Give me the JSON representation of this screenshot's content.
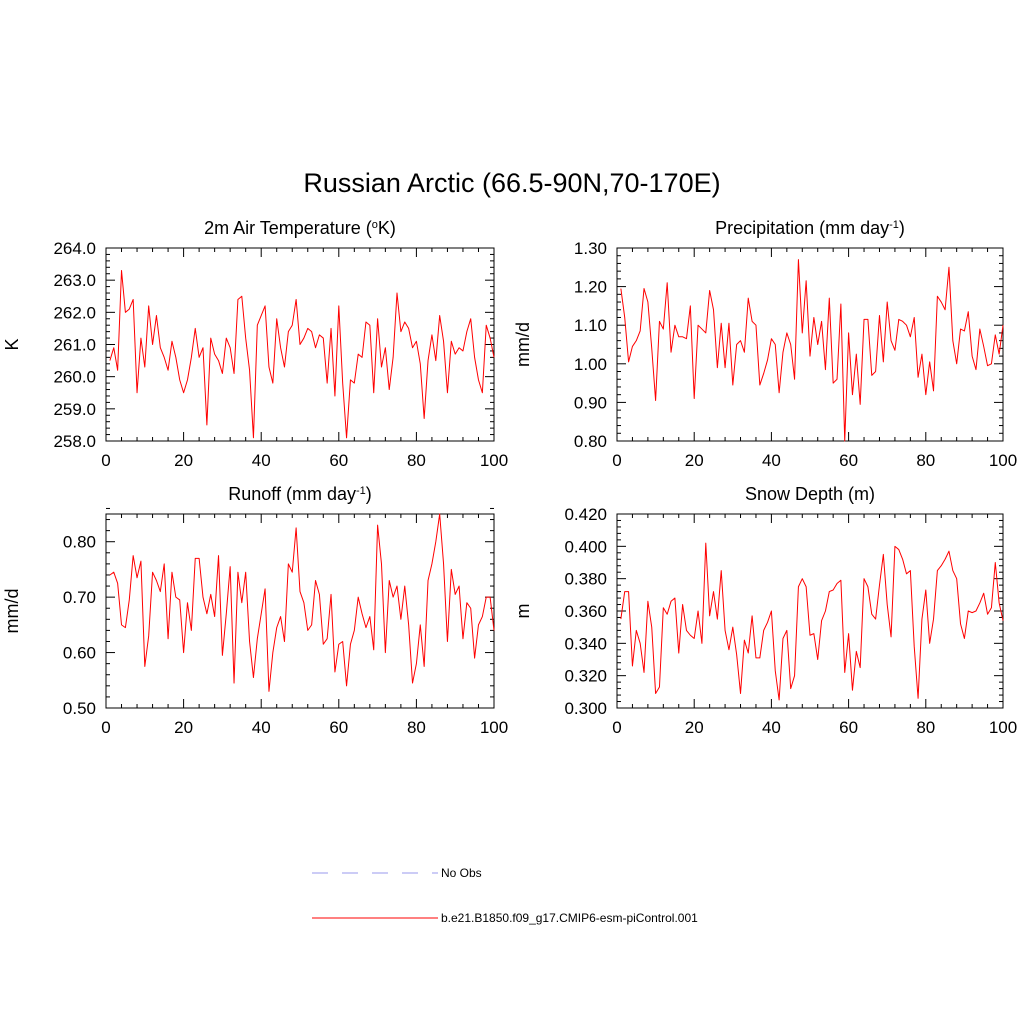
{
  "figure_title": "Russian Arctic (66.5-90N,70-170E)",
  "colors": {
    "model": "#ff0000",
    "obs": "#9999ee"
  },
  "legend": {
    "items": [
      {
        "label": "No Obs",
        "style": "dashed",
        "color": "#9999ee"
      },
      {
        "label": "b.e21.B1850.f09_g17.CMIP6-esm-piControl.001",
        "style": "solid",
        "color": "#ff0000"
      }
    ]
  },
  "chart_data": [
    {
      "id": "temp",
      "type": "line",
      "title": "2m Air Temperature",
      "title_sup": "o",
      "title_parts": [
        "2m Air Temperature (",
        "o",
        "K)"
      ],
      "ylabel": "K",
      "xlabel": "",
      "xlim": [
        0,
        100
      ],
      "ylim": [
        258.0,
        264.0
      ],
      "x_ticks": [
        0,
        20,
        40,
        60,
        80,
        100
      ],
      "x_tick_labels": [
        "0",
        "20",
        "40",
        "60",
        "80",
        "100"
      ],
      "y_ticks": [
        258,
        259,
        260,
        261,
        262,
        263,
        264
      ],
      "y_tick_labels": [
        "258.0",
        "259.0",
        "260.0",
        "261.0",
        "262.0",
        "263.0",
        "264.0"
      ],
      "x_start": 1,
      "series": [
        {
          "name": "b.e21.B1850.f09_g17.CMIP6-esm-piControl.001",
          "values": [
            260.5,
            260.9,
            260.2,
            263.3,
            262.0,
            262.1,
            262.4,
            259.5,
            261.2,
            260.3,
            262.2,
            261.0,
            261.9,
            260.9,
            260.6,
            260.2,
            261.1,
            260.6,
            259.9,
            259.5,
            259.9,
            260.6,
            261.5,
            260.6,
            260.9,
            258.5,
            261.2,
            260.7,
            260.5,
            260.1,
            261.2,
            260.9,
            260.1,
            262.4,
            262.5,
            261.2,
            260.2,
            258.1,
            261.6,
            261.9,
            262.2,
            260.3,
            259.8,
            261.8,
            260.9,
            260.3,
            261.4,
            261.6,
            262.4,
            261.0,
            261.2,
            261.5,
            261.4,
            260.9,
            261.3,
            261.2,
            259.8,
            261.5,
            259.4,
            262.2,
            259.8,
            258.1,
            259.9,
            259.8,
            260.7,
            260.6,
            261.7,
            261.6,
            259.5,
            261.8,
            260.3,
            260.9,
            259.6,
            260.6,
            262.6,
            261.4,
            261.7,
            261.5,
            260.9,
            261.1,
            260.4,
            258.7,
            260.5,
            261.3,
            260.5,
            261.9,
            261.1,
            259.5,
            261.1,
            260.7,
            260.9,
            260.8,
            261.4,
            261.8,
            260.6,
            259.9,
            259.5,
            261.6,
            261.2,
            260.6
          ]
        }
      ]
    },
    {
      "id": "precip",
      "type": "line",
      "title": "Precipitation",
      "title_parts": [
        "Precipitation (mm day",
        "-1",
        ")"
      ],
      "ylabel": "mm/d",
      "xlabel": "",
      "xlim": [
        0,
        100
      ],
      "ylim": [
        0.8,
        1.3
      ],
      "x_ticks": [
        0,
        20,
        40,
        60,
        80,
        100
      ],
      "x_tick_labels": [
        "0",
        "20",
        "40",
        "60",
        "80",
        "100"
      ],
      "y_ticks": [
        0.8,
        0.9,
        1.0,
        1.1,
        1.2,
        1.3
      ],
      "y_tick_labels": [
        "0.80",
        "0.90",
        "1.00",
        "1.10",
        "1.20",
        "1.30"
      ],
      "x_start": 1,
      "series": [
        {
          "name": "b.e21.B1850.f09_g17.CMIP6-esm-piControl.001",
          "values": [
            1.195,
            1.12,
            1.005,
            1.045,
            1.06,
            1.085,
            1.195,
            1.16,
            1.04,
            0.905,
            1.11,
            1.09,
            1.21,
            1.03,
            1.1,
            1.07,
            1.07,
            1.065,
            1.15,
            0.91,
            1.1,
            1.09,
            1.08,
            1.19,
            1.14,
            0.99,
            1.105,
            0.99,
            1.105,
            0.945,
            1.05,
            1.06,
            1.03,
            1.17,
            1.11,
            1.1,
            0.945,
            0.975,
            1.01,
            1.065,
            1.05,
            0.925,
            1.03,
            1.08,
            1.05,
            0.96,
            1.27,
            1.08,
            1.215,
            1.02,
            1.12,
            1.05,
            1.11,
            0.985,
            1.17,
            0.95,
            0.96,
            1.155,
            0.8,
            1.08,
            0.92,
            1.025,
            0.895,
            1.115,
            1.115,
            0.97,
            0.98,
            1.125,
            1.005,
            1.16,
            1.06,
            1.035,
            1.115,
            1.11,
            1.1,
            1.07,
            1.12,
            0.965,
            1.025,
            0.92,
            1.005,
            0.93,
            1.175,
            1.16,
            1.14,
            1.25,
            1.06,
            1.0,
            1.09,
            1.085,
            1.135,
            1.02,
            0.985,
            1.09,
            1.045,
            0.995,
            1.0,
            1.075,
            1.025,
            1.1
          ]
        }
      ]
    },
    {
      "id": "runoff",
      "type": "line",
      "title": "Runoff",
      "title_parts": [
        "Runoff (mm day",
        "-1",
        ")"
      ],
      "ylabel": "mm/d",
      "xlabel": "",
      "xlim": [
        0,
        100
      ],
      "ylim": [
        0.5,
        0.85
      ],
      "x_ticks": [
        0,
        20,
        40,
        60,
        80,
        100
      ],
      "x_tick_labels": [
        "0",
        "20",
        "40",
        "60",
        "80",
        "100"
      ],
      "y_ticks": [
        0.5,
        0.6,
        0.7,
        0.8
      ],
      "y_tick_labels": [
        "0.50",
        "0.60",
        "0.70",
        "0.80"
      ],
      "x_start": 1,
      "series": [
        {
          "name": "b.e21.B1850.f09_g17.CMIP6-esm-piControl.001",
          "values": [
            0.74,
            0.745,
            0.725,
            0.65,
            0.645,
            0.695,
            0.775,
            0.735,
            0.765,
            0.575,
            0.63,
            0.745,
            0.73,
            0.71,
            0.76,
            0.625,
            0.745,
            0.7,
            0.695,
            0.6,
            0.69,
            0.64,
            0.77,
            0.77,
            0.7,
            0.67,
            0.705,
            0.665,
            0.775,
            0.595,
            0.67,
            0.755,
            0.545,
            0.745,
            0.69,
            0.745,
            0.62,
            0.555,
            0.625,
            0.67,
            0.715,
            0.53,
            0.6,
            0.645,
            0.665,
            0.62,
            0.76,
            0.745,
            0.825,
            0.71,
            0.69,
            0.64,
            0.65,
            0.73,
            0.705,
            0.615,
            0.625,
            0.705,
            0.565,
            0.615,
            0.62,
            0.54,
            0.615,
            0.64,
            0.7,
            0.67,
            0.645,
            0.665,
            0.605,
            0.83,
            0.76,
            0.6,
            0.73,
            0.7,
            0.72,
            0.66,
            0.72,
            0.65,
            0.545,
            0.58,
            0.65,
            0.575,
            0.73,
            0.76,
            0.8,
            0.85,
            0.76,
            0.62,
            0.75,
            0.705,
            0.72,
            0.625,
            0.69,
            0.68,
            0.59,
            0.65,
            0.665,
            0.7,
            0.7,
            0.64
          ]
        }
      ]
    },
    {
      "id": "snow",
      "type": "line",
      "title": "Snow Depth (m)",
      "title_parts": [
        "Snow Depth (m)"
      ],
      "ylabel": "m",
      "xlabel": "",
      "xlim": [
        0,
        100
      ],
      "ylim": [
        0.3,
        0.42
      ],
      "x_ticks": [
        0,
        20,
        40,
        60,
        80,
        100
      ],
      "x_tick_labels": [
        "0",
        "20",
        "40",
        "60",
        "80",
        "100"
      ],
      "y_ticks": [
        0.3,
        0.32,
        0.34,
        0.36,
        0.38,
        0.4,
        0.42
      ],
      "y_tick_labels": [
        "0.300",
        "0.320",
        "0.340",
        "0.360",
        "0.380",
        "0.400",
        "0.420"
      ],
      "x_start": 1,
      "series": [
        {
          "name": "b.e21.B1850.f09_g17.CMIP6-esm-piControl.001",
          "values": [
            0.355,
            0.372,
            0.372,
            0.326,
            0.348,
            0.34,
            0.322,
            0.366,
            0.35,
            0.309,
            0.313,
            0.362,
            0.358,
            0.366,
            0.368,
            0.334,
            0.364,
            0.348,
            0.345,
            0.343,
            0.36,
            0.34,
            0.402,
            0.357,
            0.372,
            0.355,
            0.385,
            0.348,
            0.336,
            0.35,
            0.333,
            0.309,
            0.342,
            0.334,
            0.357,
            0.331,
            0.331,
            0.348,
            0.353,
            0.36,
            0.323,
            0.305,
            0.343,
            0.348,
            0.312,
            0.32,
            0.375,
            0.38,
            0.375,
            0.345,
            0.346,
            0.33,
            0.354,
            0.36,
            0.372,
            0.373,
            0.377,
            0.379,
            0.322,
            0.346,
            0.311,
            0.335,
            0.325,
            0.38,
            0.375,
            0.358,
            0.355,
            0.376,
            0.395,
            0.364,
            0.344,
            0.4,
            0.398,
            0.392,
            0.383,
            0.385,
            0.338,
            0.306,
            0.355,
            0.373,
            0.34,
            0.355,
            0.385,
            0.388,
            0.392,
            0.397,
            0.385,
            0.38,
            0.352,
            0.343,
            0.36,
            0.359,
            0.36,
            0.365,
            0.371,
            0.358,
            0.362,
            0.39,
            0.365,
            0.354
          ]
        }
      ]
    }
  ]
}
